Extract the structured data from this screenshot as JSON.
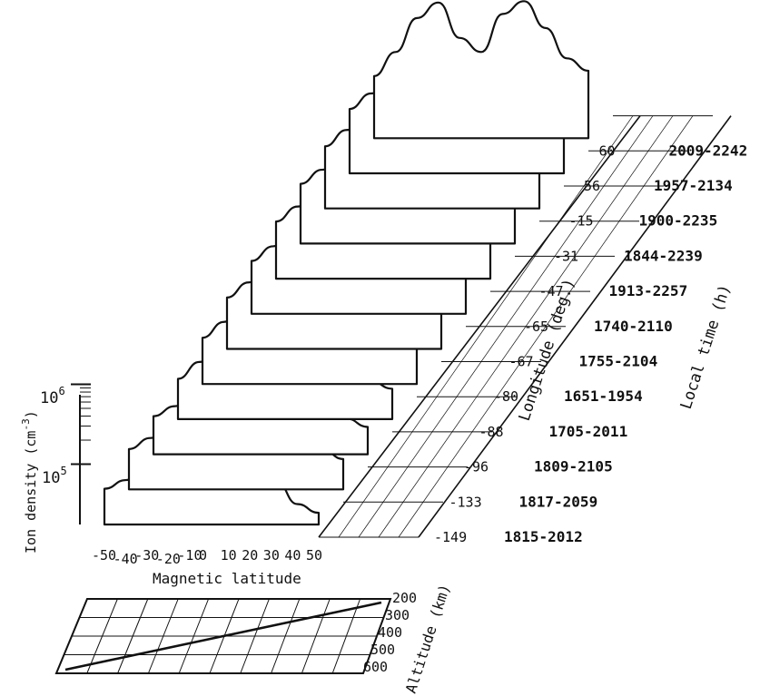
{
  "chart_data": {
    "type": "line",
    "subtype": "3d-waterfall",
    "title": "",
    "xlabel": "Magnetic latitude",
    "ylabel": "Ion density (cm^-3)",
    "y_axis_label_text": "Ion density (cm",
    "y_axis_label_sup": "-3",
    "y_axis_label_close": ")",
    "zlabel": "Longitude (deg.)",
    "tlabel": "Local time (h)",
    "altitude_label": "Altitude (km)",
    "y_scale": "log",
    "y_ticks": [
      {
        "base": "10",
        "exp": "6",
        "value": 1000000
      },
      {
        "base": "10",
        "exp": "5",
        "value": 100000
      }
    ],
    "x_ticks": [
      "-50",
      "-40",
      "-30",
      "-20",
      "-10",
      "0",
      "10",
      "20",
      "30",
      "40",
      "50"
    ],
    "x": [
      -50,
      -40,
      -30,
      -20,
      -10,
      0,
      10,
      20,
      30,
      40,
      50
    ],
    "altitude_ticks": [
      "200",
      "300",
      "400",
      "500",
      "600"
    ],
    "series": [
      {
        "longitude": "-149",
        "local_time": "1815-2012",
        "values": [
          140000.0,
          180000.0,
          270000.0,
          420000.0,
          650000.0,
          500000.0,
          350000.0,
          300000.0,
          180000.0,
          90000.0,
          70000.0
        ]
      },
      {
        "longitude": "-133",
        "local_time": "1817-2059",
        "values": [
          160000.0,
          220000.0,
          350000.0,
          460000.0,
          440000.0,
          440000.0,
          520000.0,
          400000.0,
          280000.0,
          160000.0,
          120000.0
        ]
      },
      {
        "longitude": "-96",
        "local_time": "1809-2105",
        "values": [
          150000.0,
          200000.0,
          300000.0,
          450000.0,
          520000.0,
          420000.0,
          360000.0,
          320000.0,
          200000.0,
          140000.0,
          110000.0
        ]
      },
      {
        "longitude": "-88",
        "local_time": "1705-2011",
        "values": [
          160000.0,
          260000.0,
          380000.0,
          550000.0,
          650000.0,
          500000.0,
          420000.0,
          380000.0,
          240000.0,
          150000.0,
          120000.0
        ]
      },
      {
        "longitude": "-80",
        "local_time": "1651-1954",
        "values": [
          190000.0,
          300000.0,
          450000.0,
          620000.0,
          800000.0,
          650000.0,
          500000.0,
          460000.0,
          280000.0,
          180000.0,
          150000.0
        ]
      },
      {
        "longitude": "-67",
        "local_time": "1755-2104",
        "values": [
          220000.0,
          340000.0,
          520000.0,
          750000.0,
          950000.0,
          780000.0,
          600000.0,
          550000.0,
          320000.0,
          200000.0,
          170000.0
        ]
      },
      {
        "longitude": "-65",
        "local_time": "1740-2110",
        "values": [
          230000.0,
          350000.0,
          550000.0,
          800000.0,
          1000000.0,
          800000.0,
          620000.0,
          580000.0,
          350000.0,
          220000.0,
          180000.0
        ]
      },
      {
        "longitude": "-47",
        "local_time": "1913-2257",
        "values": [
          260000.0,
          400000.0,
          600000.0,
          850000.0,
          1050000.0,
          850000.0,
          700000.0,
          650000.0,
          400000.0,
          250000.0,
          200000.0
        ]
      },
      {
        "longitude": "-31",
        "local_time": "1844-2239",
        "values": [
          280000.0,
          420000.0,
          620000.0,
          880000.0,
          1100000.0,
          900000.0,
          750000.0,
          700000.0,
          450000.0,
          280000.0,
          220000.0
        ]
      },
      {
        "longitude": "-15",
        "local_time": "1900-2235",
        "values": [
          300000.0,
          480000.0,
          680000.0,
          800000.0,
          900000.0,
          850000.0,
          850000.0,
          750000.0,
          500000.0,
          300000.0,
          250000.0
        ]
      },
      {
        "longitude": "56",
        "local_time": "1957-2134",
        "values": [
          320000.0,
          500000.0,
          750000.0,
          1200000.0,
          1500000.0,
          1300000.0,
          1100000.0,
          900000.0,
          600000.0,
          400000.0,
          300000.0
        ]
      },
      {
        "longitude": "60",
        "local_time": "2009-2242",
        "values": [
          300000.0,
          600000.0,
          1600000.0,
          2500000.0,
          900000.0,
          600000.0,
          1800000.0,
          2600000.0,
          1200000.0,
          500000.0,
          350000.0
        ]
      }
    ]
  }
}
